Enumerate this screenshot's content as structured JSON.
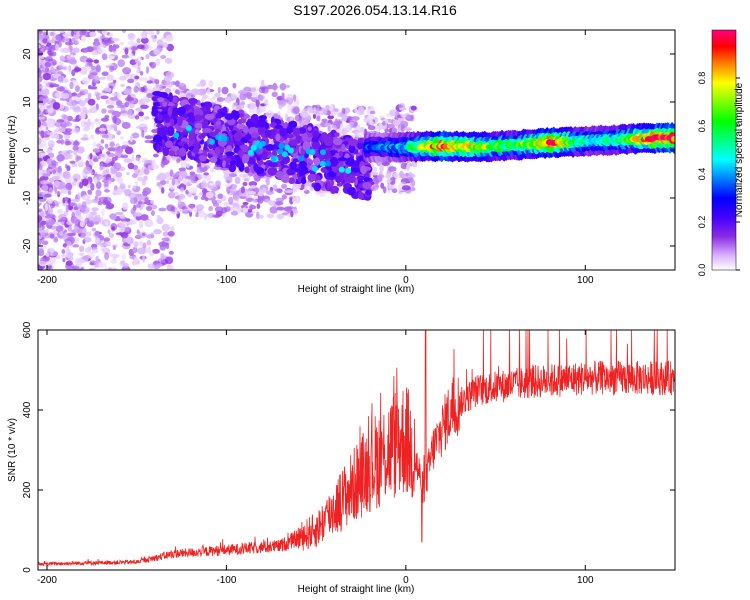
{
  "title": "S197.2026.054.13.14.R16",
  "chart_data": [
    {
      "type": "heatmap",
      "title": "S197.2026.054.13.14.R16",
      "xlabel": "Height of straight line (km)",
      "ylabel": "Frequency (Hz)",
      "xlim": [
        -205,
        150
      ],
      "ylim": [
        -25,
        25
      ],
      "xticks": [
        -200,
        -100,
        0,
        100
      ],
      "yticks": [
        -20,
        -10,
        0,
        10,
        20
      ],
      "colorbar": {
        "label": "Normalized spectral amplitude",
        "range": [
          0,
          1
        ],
        "ticks": [
          "0.0",
          "0.2",
          "0.4",
          "0.6",
          "0.8"
        ],
        "colors": [
          "#ffffff",
          "#d9b3ff",
          "#8a2be2",
          "#4400ff",
          "#0000ff",
          "#0080ff",
          "#00ffff",
          "#00ff80",
          "#00ff00",
          "#80ff00",
          "#ffff00",
          "#ff8000",
          "#ff0000",
          "#ff0080"
        ]
      },
      "ridge": [
        {
          "x": -15,
          "y": 0.6,
          "amp": 0.35
        },
        {
          "x": 0,
          "y": 0.6,
          "amp": 0.45
        },
        {
          "x": 20,
          "y": 0.8,
          "amp": 0.9
        },
        {
          "x": 40,
          "y": 0.6,
          "amp": 0.7
        },
        {
          "x": 60,
          "y": 1.0,
          "amp": 0.55
        },
        {
          "x": 80,
          "y": 1.5,
          "amp": 0.9
        },
        {
          "x": 100,
          "y": 1.8,
          "amp": 0.5
        },
        {
          "x": 120,
          "y": 2.2,
          "amp": 0.55
        },
        {
          "x": 140,
          "y": 2.5,
          "amp": 0.95
        }
      ]
    },
    {
      "type": "line",
      "xlabel": "Height of straight line (km)",
      "ylabel": "SNR (10 * v/v)",
      "xlim": [
        -205,
        150
      ],
      "ylim": [
        0,
        600
      ],
      "xticks": [
        -200,
        -100,
        0,
        100
      ],
      "yticks": [
        0,
        200,
        400,
        600
      ],
      "color": "#ee2222",
      "envelope": [
        {
          "x": -205,
          "y": 15
        },
        {
          "x": -150,
          "y": 20
        },
        {
          "x": -130,
          "y": 40
        },
        {
          "x": -100,
          "y": 50
        },
        {
          "x": -70,
          "y": 60
        },
        {
          "x": -50,
          "y": 100
        },
        {
          "x": -35,
          "y": 180
        },
        {
          "x": -20,
          "y": 260
        },
        {
          "x": -5,
          "y": 320
        },
        {
          "x": 0,
          "y": 330
        },
        {
          "x": 5,
          "y": 280
        },
        {
          "x": 10,
          "y": 200
        },
        {
          "x": 15,
          "y": 300
        },
        {
          "x": 25,
          "y": 400
        },
        {
          "x": 40,
          "y": 450
        },
        {
          "x": 70,
          "y": 470
        },
        {
          "x": 100,
          "y": 480
        },
        {
          "x": 150,
          "y": 480
        }
      ],
      "spikes": [
        {
          "x": 11,
          "y": 600
        },
        {
          "x": 9,
          "y": 70
        }
      ]
    }
  ]
}
